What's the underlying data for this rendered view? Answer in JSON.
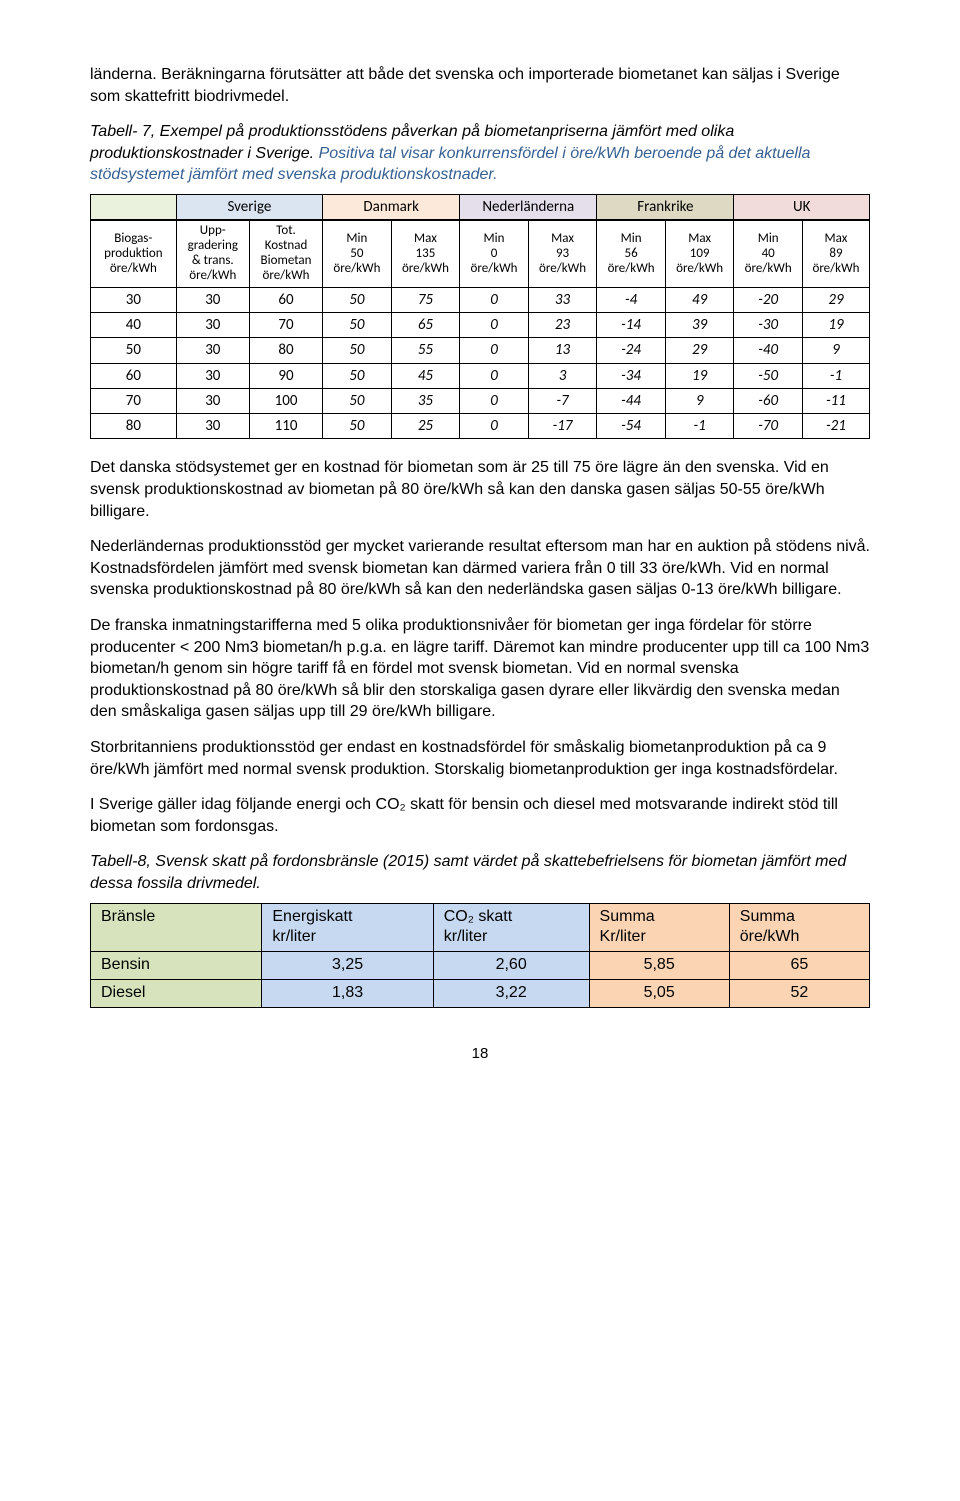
{
  "intro_par": "länderna. Beräkningarna förutsätter att både det svenska och importerade biometanet kan säljas i Sverige som skattefritt biodrivmedel.",
  "caption1_a": "Tabell- 7, Exempel på produktionsstödens påverkan på biometanpriserna jämfört med olika produktionskostnader i Sverige.",
  "caption1_b": " Positiva tal visar konkurrensfördel i öre/kWh beroende på det aktuella stödsystemet jämfört med svenska produktionskostnader.",
  "group_headers": [
    "",
    "Sverige",
    "",
    "Danmark",
    "",
    "Nederländerna",
    "",
    "Frankrike",
    "",
    "UK",
    ""
  ],
  "t1_colheads": [
    "Biogas-\nproduktion\nöre/kWh",
    "Upp-\ngradering\n& trans.\nöre/kWh",
    "Tot.\nKostnad\nBiometan\nöre/kWh",
    "Min\n50\nöre/kWh",
    "Max\n135\nöre/kWh",
    "Min\n0\nöre/kWh",
    "Max\n93\nöre/kWh",
    "Min\n56\nöre/kWh",
    "Max\n109\nöre/kWh",
    "Min\n40\nöre/kWh",
    "Max\n89\nöre/kWh"
  ],
  "t1_rows": [
    [
      "30",
      "30",
      "60",
      "50",
      "75",
      "0",
      "33",
      "-4",
      "49",
      "-20",
      "29"
    ],
    [
      "40",
      "30",
      "70",
      "50",
      "65",
      "0",
      "23",
      "-14",
      "39",
      "-30",
      "19"
    ],
    [
      "50",
      "30",
      "80",
      "50",
      "55",
      "0",
      "13",
      "-24",
      "29",
      "-40",
      "9"
    ],
    [
      "60",
      "30",
      "90",
      "50",
      "45",
      "0",
      "3",
      "-34",
      "19",
      "-50",
      "-1"
    ],
    [
      "70",
      "30",
      "100",
      "50",
      "35",
      "0",
      "-7",
      "-44",
      "9",
      "-60",
      "-11"
    ],
    [
      "80",
      "30",
      "110",
      "50",
      "25",
      "0",
      "-17",
      "-54",
      "-1",
      "-70",
      "-21"
    ]
  ],
  "body_pars": [
    "Det danska stödsystemet ger en kostnad för biometan som är 25 till 75 öre lägre än den svenska. Vid en svensk produktionskostnad av biometan på 80 öre/kWh så kan den danska gasen säljas 50-55 öre/kWh billigare.",
    "Nederländernas produktionsstöd ger mycket varierande resultat eftersom man har en auktion på stödens nivå. Kostnadsfördelen jämfört med svensk biometan kan därmed variera från 0 till 33 öre/kWh. Vid en normal svenska produktionskostnad på 80 öre/kWh så kan den nederländska gasen säljas 0-13 öre/kWh billigare.",
    "De franska inmatningstarifferna med 5 olika produktionsnivåer för biometan ger inga fördelar för större producenter < 200 Nm3 biometan/h p.g.a. en lägre tariff. Däremot kan mindre producenter upp till ca 100 Nm3 biometan/h genom sin högre tariff få en fördel mot svensk biometan. Vid en normal svenska produktionskostnad på 80 öre/kWh så blir den storskaliga gasen dyrare eller likvärdig den svenska medan den småskaliga gasen säljas upp till 29 öre/kWh billigare.",
    "Storbritanniens produktionsstöd ger endast en kostnadsfördel för småskalig biometanproduktion på ca 9 öre/kWh jämfört med normal svensk produktion. Storskalig biometanproduktion ger inga kostnadsfördelar.",
    "I Sverige gäller idag följande energi och CO₂ skatt för bensin och diesel med motsvarande indirekt stöd till biometan som fordonsgas."
  ],
  "caption2": "Tabell-8, Svensk skatt på fordonsbränsle (2015) samt värdet på skattebefrielsens för biometan jämfört med dessa fossila drivmedel.",
  "t2_head": [
    [
      "Bränsle"
    ],
    [
      "Energiskatt",
      "kr/liter"
    ],
    [
      "CO₂ skatt",
      "kr/liter"
    ],
    [
      "Summa",
      "Kr/liter"
    ],
    [
      "Summa",
      "öre/kWh"
    ]
  ],
  "t2_rows": [
    [
      "Bensin",
      "3,25",
      "2,60",
      "5,85",
      "65"
    ],
    [
      "Diesel",
      "1,83",
      "3,22",
      "5,05",
      "52"
    ]
  ],
  "page_number": "18"
}
